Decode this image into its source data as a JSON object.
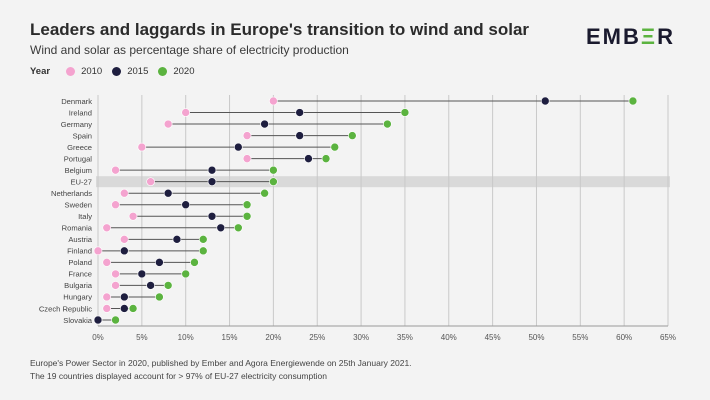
{
  "header": {
    "title": "Leaders and laggards in Europe's transition to wind and solar",
    "subtitle": "Wind and solar as percentage share of electricity production"
  },
  "logo": {
    "text_pre": "EMB",
    "text_accent": "Ξ",
    "text_post": "R"
  },
  "legend": {
    "title": "Year",
    "items": [
      {
        "label": "2010",
        "color": "#f4a3cf"
      },
      {
        "label": "2015",
        "color": "#1e1e3f"
      },
      {
        "label": "2020",
        "color": "#5bb33f"
      }
    ]
  },
  "footer": {
    "line1": "Europe's Power Sector in 2020, published by Ember and Agora Energiewende on 25th January 2021.",
    "line2": "The 19 countries displayed account for > 97% of EU-27 electricity consumption"
  },
  "chart_data": {
    "type": "dumbbell",
    "title": "Leaders and laggards in Europe's transition to wind and solar",
    "xlabel": "",
    "ylabel": "",
    "xlim": [
      0,
      65
    ],
    "xticks": [
      0,
      5,
      10,
      15,
      20,
      25,
      30,
      35,
      40,
      45,
      50,
      55,
      60,
      65
    ],
    "tick_suffix": "%",
    "highlight": "EU-27",
    "series_colors": {
      "2010": "#f4a3cf",
      "2015": "#1e1e3f",
      "2020": "#5bb33f"
    },
    "categories": [
      "Denmark",
      "Ireland",
      "Germany",
      "Spain",
      "Greece",
      "Portugal",
      "Belgium",
      "EU-27",
      "Netherlands",
      "Sweden",
      "Italy",
      "Romania",
      "Austria",
      "Finland",
      "Poland",
      "France",
      "Bulgaria",
      "Hungary",
      "Czech Republic",
      "Slovakia"
    ],
    "series": [
      {
        "name": "2010",
        "values": [
          20,
          10,
          8,
          17,
          5,
          17,
          2,
          6,
          3,
          2,
          4,
          1,
          3,
          0,
          1,
          2,
          2,
          1,
          1,
          0
        ]
      },
      {
        "name": "2015",
        "values": [
          51,
          23,
          19,
          23,
          16,
          24,
          13,
          13,
          8,
          10,
          13,
          14,
          9,
          3,
          7,
          5,
          6,
          3,
          3,
          0
        ]
      },
      {
        "name": "2020",
        "values": [
          61,
          35,
          33,
          29,
          27,
          26,
          20,
          20,
          19,
          17,
          17,
          16,
          12,
          12,
          11,
          10,
          8,
          7,
          4,
          2
        ]
      }
    ]
  }
}
